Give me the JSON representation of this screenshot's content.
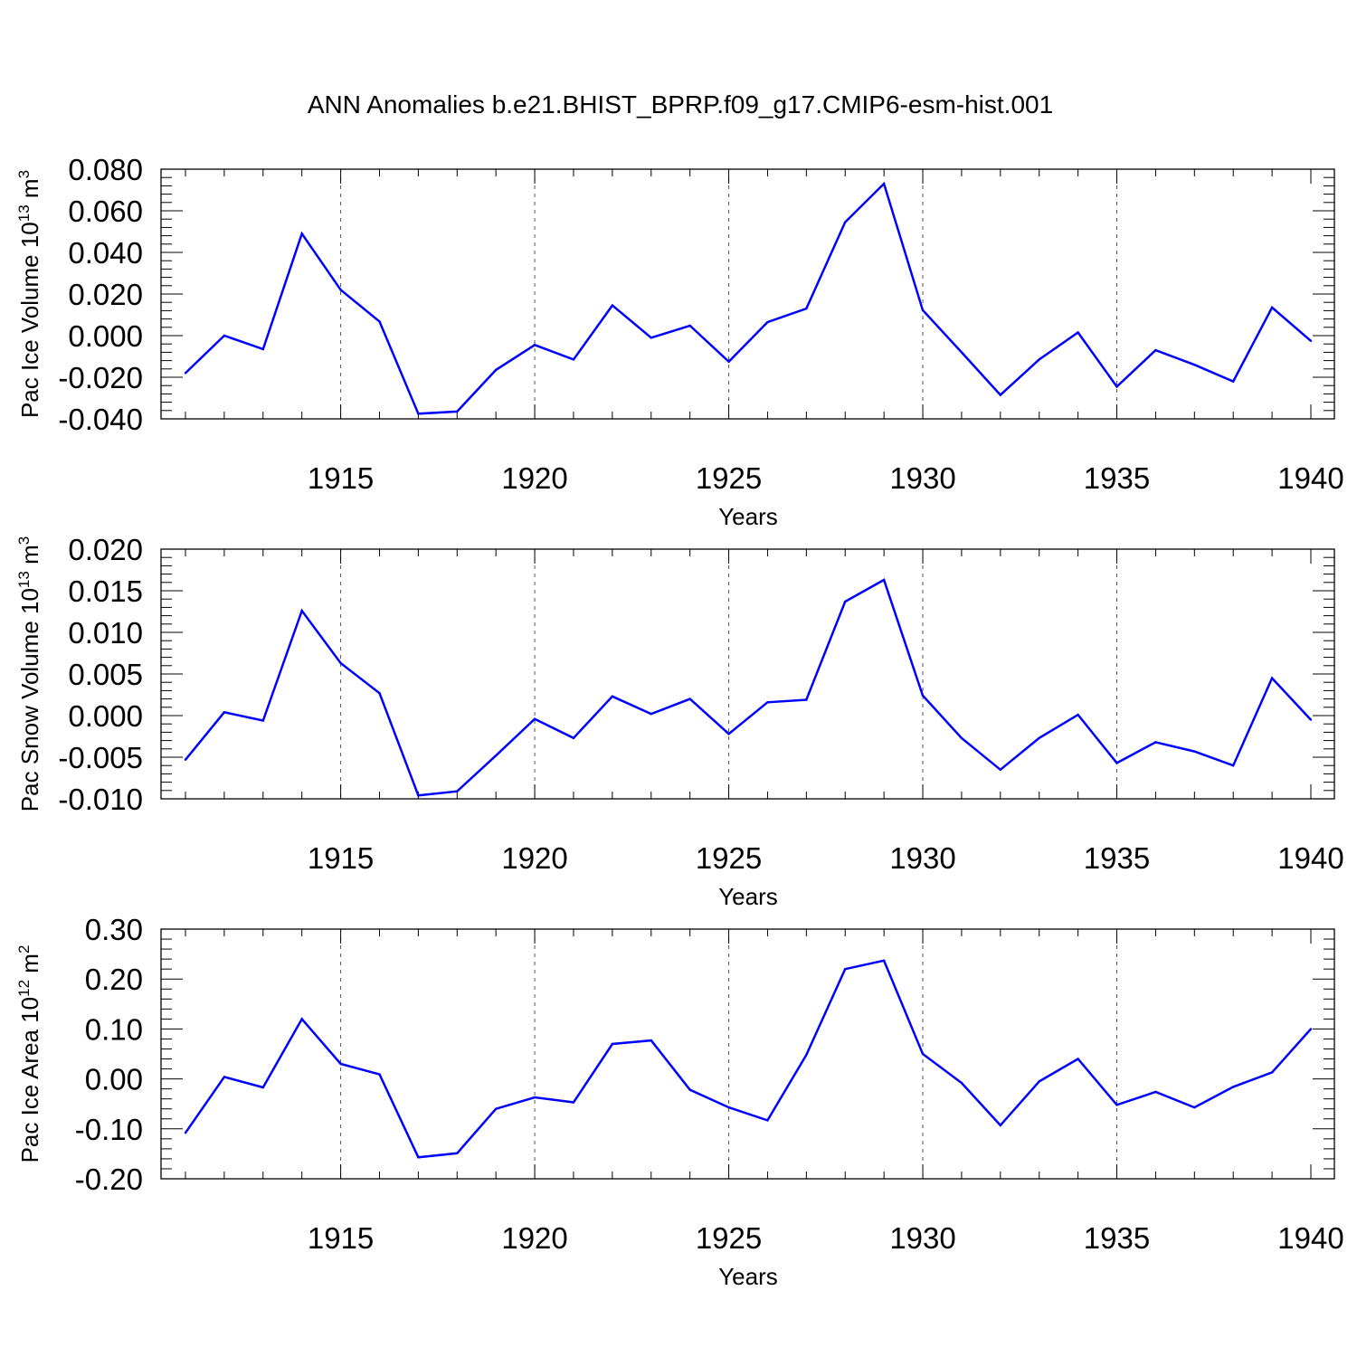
{
  "title": "ANN Anomalies b.e21.BHIST_BPRP.f09_g17.CMIP6-esm-hist.001",
  "colors": {
    "line": "#0000ff",
    "axis": "#000000",
    "grid": "#555555"
  },
  "chart_data": [
    {
      "type": "line",
      "title": "ANN Anomalies b.e21.BHIST_BPRP.f09_g17.CMIP6-esm-hist.001",
      "xlabel": "Years",
      "ylabel": {
        "text": "Pac Ice Volume 10",
        "sup_exp": "13",
        "unit": " m",
        "sup_unit": "3"
      },
      "xlim": [
        1911,
        1940
      ],
      "ylim": [
        -0.04,
        0.08
      ],
      "xticks": [
        1915,
        1920,
        1925,
        1930,
        1935,
        1940
      ],
      "xtick_labels": [
        "1915",
        "1920",
        "1925",
        "1930",
        "1935",
        "1940"
      ],
      "yticks": [
        -0.04,
        -0.02,
        0.0,
        0.02,
        0.04,
        0.06,
        0.08
      ],
      "ytick_labels": [
        "-0.040",
        "-0.020",
        "0.000",
        "0.020",
        "0.040",
        "0.060",
        "0.080"
      ],
      "grid": "vertical dashed at major x ticks",
      "x": [
        1911,
        1912,
        1913,
        1914,
        1915,
        1916,
        1917,
        1918,
        1919,
        1920,
        1921,
        1922,
        1923,
        1924,
        1925,
        1926,
        1927,
        1928,
        1929,
        1930,
        1931,
        1932,
        1933,
        1934,
        1935,
        1936,
        1937,
        1938,
        1939,
        1940
      ],
      "series": [
        {
          "values": [
            -0.018,
            0.0,
            -0.0065,
            0.049,
            0.022,
            0.0068,
            -0.0375,
            -0.0365,
            -0.0165,
            -0.0045,
            -0.0115,
            0.0145,
            -0.001,
            0.0048,
            -0.0125,
            0.0065,
            0.013,
            0.0545,
            0.073,
            0.0122,
            -0.008,
            -0.0285,
            -0.0115,
            0.0015,
            -0.0245,
            -0.007,
            -0.014,
            -0.022,
            0.0135,
            -0.0025
          ]
        }
      ]
    },
    {
      "type": "line",
      "xlabel": "Years",
      "ylabel": {
        "text": "Pac Snow Volume 10",
        "sup_exp": "13",
        "unit": " m",
        "sup_unit": "3"
      },
      "xlim": [
        1911,
        1940
      ],
      "ylim": [
        -0.01,
        0.02
      ],
      "xticks": [
        1915,
        1920,
        1925,
        1930,
        1935,
        1940
      ],
      "xtick_labels": [
        "1915",
        "1920",
        "1925",
        "1930",
        "1935",
        "1940"
      ],
      "yticks": [
        -0.01,
        -0.005,
        0.0,
        0.005,
        0.01,
        0.015,
        0.02
      ],
      "ytick_labels": [
        "-0.010",
        "-0.005",
        "0.000",
        "0.005",
        "0.010",
        "0.015",
        "0.020"
      ],
      "grid": "vertical dashed at major x ticks",
      "x": [
        1911,
        1912,
        1913,
        1914,
        1915,
        1916,
        1917,
        1918,
        1919,
        1920,
        1921,
        1922,
        1923,
        1924,
        1925,
        1926,
        1927,
        1928,
        1929,
        1930,
        1931,
        1932,
        1933,
        1934,
        1935,
        1936,
        1937,
        1938,
        1939,
        1940
      ],
      "series": [
        {
          "values": [
            -0.0053,
            0.0004,
            -0.0006,
            0.0126,
            0.0063,
            0.0027,
            -0.0096,
            -0.0091,
            -0.0048,
            -0.0004,
            -0.0027,
            0.0023,
            0.0002,
            0.002,
            -0.0022,
            0.0016,
            0.0019,
            0.0137,
            0.0163,
            0.0024,
            -0.0027,
            -0.0065,
            -0.0027,
            0.0001,
            -0.0057,
            -0.0032,
            -0.0043,
            -0.006,
            0.0045,
            -0.0005
          ]
        }
      ]
    },
    {
      "type": "line",
      "xlabel": "Years",
      "ylabel": {
        "text": "Pac Ice Area 10",
        "sup_exp": "12",
        "unit": " m",
        "sup_unit": "2"
      },
      "xlim": [
        1911,
        1940
      ],
      "ylim": [
        -0.2,
        0.3
      ],
      "xticks": [
        1915,
        1920,
        1925,
        1930,
        1935,
        1940
      ],
      "xtick_labels": [
        "1915",
        "1920",
        "1925",
        "1930",
        "1935",
        "1940"
      ],
      "yticks": [
        -0.2,
        -0.1,
        0.0,
        0.1,
        0.2,
        0.3
      ],
      "ytick_labels": [
        "-0.20",
        "-0.10",
        "0.00",
        "0.10",
        "0.20",
        "0.30"
      ],
      "grid": "vertical dashed at major x ticks",
      "x": [
        1911,
        1912,
        1913,
        1914,
        1915,
        1916,
        1917,
        1918,
        1919,
        1920,
        1921,
        1922,
        1923,
        1924,
        1925,
        1926,
        1927,
        1928,
        1929,
        1930,
        1931,
        1932,
        1933,
        1934,
        1935,
        1936,
        1937,
        1938,
        1939,
        1940
      ],
      "series": [
        {
          "values": [
            -0.108,
            0.004,
            -0.017,
            0.12,
            0.03,
            0.009,
            -0.157,
            -0.149,
            -0.06,
            -0.037,
            -0.047,
            0.07,
            0.077,
            -0.022,
            -0.057,
            -0.083,
            0.048,
            0.22,
            0.237,
            0.05,
            -0.008,
            -0.093,
            -0.005,
            0.04,
            -0.052,
            -0.026,
            -0.057,
            -0.016,
            0.013,
            0.1
          ]
        }
      ]
    }
  ]
}
